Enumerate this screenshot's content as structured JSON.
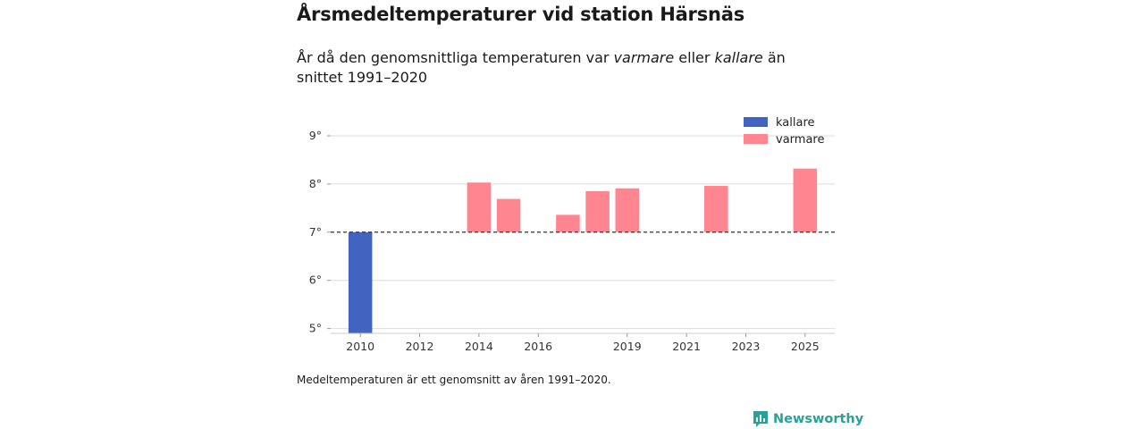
{
  "header": {
    "title": "Årsmedeltemperaturer vid station Härsnäs",
    "subtitle_pre": "År då den genomsnittliga temperaturen var ",
    "subtitle_warm": "varmare",
    "subtitle_mid": " eller ",
    "subtitle_cold": "kallare",
    "subtitle_post": " än snittet 1991–2020"
  },
  "footnote": "Medeltemperaturen är ett genomsnitt av åren 1991–2020.",
  "brand": {
    "name": "Newsworthy",
    "icon": "newsworthy-logo-icon",
    "color": "#2aa198"
  },
  "colors": {
    "kallare": "#4263bf",
    "varmare": "#ff8591",
    "baseline": "#333333",
    "grid": "#dddddd"
  },
  "chart_data": {
    "type": "bar",
    "title": "Årsmedeltemperaturer vid station Härsnäs",
    "xlabel": "",
    "ylabel": "",
    "x_range": [
      2009,
      2026
    ],
    "ylim": [
      4.9,
      9.5
    ],
    "baseline": 7.0,
    "y_ticks": [
      5,
      6,
      7,
      8,
      9
    ],
    "y_tick_suffix": "°",
    "x_ticks": [
      2010,
      2012,
      2014,
      2016,
      2019,
      2021,
      2023,
      2025
    ],
    "legend": {
      "position": "top-right",
      "entries": [
        "kallare",
        "varmare"
      ]
    },
    "series": [
      {
        "name": "kallare",
        "points": [
          {
            "year": 2010,
            "value": 4.89
          }
        ]
      },
      {
        "name": "varmare",
        "points": [
          {
            "year": 2014,
            "value": 8.03
          },
          {
            "year": 2015,
            "value": 7.69
          },
          {
            "year": 2017,
            "value": 7.36
          },
          {
            "year": 2018,
            "value": 7.85
          },
          {
            "year": 2019,
            "value": 7.91
          },
          {
            "year": 2022,
            "value": 7.96
          },
          {
            "year": 2025,
            "value": 8.32
          }
        ]
      }
    ]
  }
}
